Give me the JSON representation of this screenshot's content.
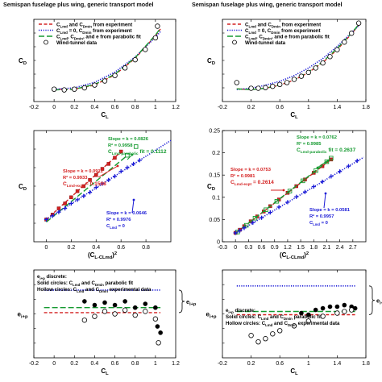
{
  "titles": {
    "left": "Semispan fuselage plus wing, generic transport model",
    "right": "Semispan fuselage plus wing, generic transport model"
  },
  "colors": {
    "red": "#d42020",
    "blue": "#1a1ad6",
    "green": "#159a30",
    "black": "#000000"
  },
  "chart_data": [
    {
      "id": "a",
      "type": "line",
      "xlabel": "C_L",
      "ylabel": "C_D",
      "xlim": [
        -0.2,
        1.2
      ],
      "xticks": [
        "-0.2",
        "0",
        "0.2",
        "0.4",
        "0.6",
        "0.8",
        "1",
        "1.2"
      ],
      "legend": [
        {
          "text": "C_Lmd and C_Dmin from experiment",
          "style": "red-dash"
        },
        {
          "text": "C_Lmd = 0, C_Dmin from experiment",
          "style": "blue-dot"
        },
        {
          "text": "C_Lmd, C_Dmin, and e from parabolic fit",
          "style": "green-longdash"
        },
        {
          "text": "Wind-tunnel data",
          "style": "open-circle"
        }
      ],
      "series": [
        {
          "style": "red-dash",
          "x": [
            0,
            0.2,
            0.4,
            0.6,
            0.8,
            1.0,
            1.05
          ],
          "y": [
            0.018,
            0.018,
            0.024,
            0.039,
            0.063,
            0.096,
            0.106
          ]
        },
        {
          "style": "blue-dot",
          "x": [
            0,
            0.2,
            0.4,
            0.6,
            0.8,
            1.0,
            1.05
          ],
          "y": [
            0.018,
            0.02,
            0.028,
            0.043,
            0.065,
            0.094,
            0.102
          ]
        },
        {
          "style": "green-longdash",
          "x": [
            0,
            0.2,
            0.4,
            0.6,
            0.8,
            1.0,
            1.05
          ],
          "y": [
            0.017,
            0.018,
            0.025,
            0.04,
            0.064,
            0.097,
            0.107
          ]
        },
        {
          "style": "open-circle",
          "x": [
            0.0,
            0.1,
            0.2,
            0.3,
            0.4,
            0.5,
            0.6,
            0.7,
            0.8,
            0.9,
            1.0,
            1.02
          ],
          "y": [
            0.018,
            0.017,
            0.018,
            0.02,
            0.024,
            0.03,
            0.038,
            0.049,
            0.061,
            0.076,
            0.093,
            0.11
          ]
        }
      ]
    },
    {
      "id": "b",
      "type": "line",
      "xlabel": "C_L",
      "ylabel": "C_D",
      "xlim": [
        -0.2,
        1.8
      ],
      "xticks": [
        "-0.2",
        "0.2",
        "0.6",
        "1",
        "1.4",
        "1.8"
      ],
      "legend": [
        {
          "text": "C_Lmd and C_Dmin from experiment",
          "style": "red-dash"
        },
        {
          "text": "C_Lmd = 0, C_Dmin from experiment",
          "style": "blue-dot"
        },
        {
          "text": "C_Lmd, C_Dmin, and e from parabolic fit",
          "style": "green-longdash"
        },
        {
          "text": "Wind-tunnel data",
          "style": "open-circle"
        }
      ],
      "series": [
        {
          "style": "red-dash",
          "x": [
            0,
            0.2,
            0.4,
            0.6,
            0.8,
            1.0,
            1.2,
            1.4,
            1.6,
            1.7
          ],
          "y": [
            0.02,
            0.019,
            0.021,
            0.026,
            0.034,
            0.046,
            0.062,
            0.082,
            0.107,
            0.121
          ]
        },
        {
          "style": "blue-dot",
          "x": [
            0,
            0.2,
            0.4,
            0.6,
            0.8,
            1.0,
            1.2,
            1.4,
            1.6,
            1.7
          ],
          "y": [
            0.019,
            0.021,
            0.026,
            0.032,
            0.041,
            0.053,
            0.068,
            0.087,
            0.109,
            0.12
          ]
        },
        {
          "style": "green-longdash",
          "x": [
            0,
            0.2,
            0.4,
            0.6,
            0.8,
            1.0,
            1.2,
            1.4,
            1.6,
            1.7
          ],
          "y": [
            0.02,
            0.019,
            0.021,
            0.026,
            0.034,
            0.047,
            0.063,
            0.084,
            0.108,
            0.122
          ]
        },
        {
          "style": "open-circle",
          "x": [
            0.0,
            0.2,
            0.3,
            0.4,
            0.5,
            0.6,
            0.7,
            0.8,
            0.9,
            1.0,
            1.1,
            1.2,
            1.3,
            1.4,
            1.5,
            1.6,
            1.7
          ],
          "y": [
            0.03,
            0.021,
            0.021,
            0.022,
            0.024,
            0.027,
            0.03,
            0.035,
            0.04,
            0.046,
            0.053,
            0.061,
            0.071,
            0.082,
            0.094,
            0.108,
            0.124
          ]
        }
      ]
    },
    {
      "id": "c",
      "type": "scatter",
      "xlabel": "(C_L-C_Lmd)^2",
      "ylabel": "C_D",
      "xlim": [
        -0.1,
        1.0
      ],
      "xticks": [
        "0",
        "0.2",
        "0.4",
        "0.6",
        "0.8"
      ],
      "annotations": {
        "green": [
          "Slope = k = 0.0826",
          "R² = 0.9958",
          "C_Lmd-parabolic fit = 0.1112"
        ],
        "red": [
          "Slope = k = 0.0912",
          "R² = 0.9933",
          "C_Lmd-expt = 0.1598"
        ],
        "blue": [
          "Slope = k = 0.0646",
          "R² = 0.9976",
          "C_Lmd = 0"
        ]
      },
      "series": [
        {
          "style": "red-dash",
          "x": [
            0,
            0.58
          ],
          "y": [
            0.018,
            0.071
          ]
        },
        {
          "style": "red-square",
          "x": [
            0,
            0.05,
            0.1,
            0.15,
            0.2,
            0.25,
            0.3,
            0.35,
            0.4,
            0.45,
            0.5,
            0.55,
            0.6
          ],
          "y": [
            0.018,
            0.022,
            0.027,
            0.031,
            0.036,
            0.041,
            0.045,
            0.05,
            0.054,
            0.059,
            0.063,
            0.068,
            0.073
          ]
        },
        {
          "style": "green-longdash",
          "x": [
            0,
            0.64
          ],
          "y": [
            0.016,
            0.069
          ]
        },
        {
          "style": "green-open-square",
          "x": [
            0.65,
            0.72
          ],
          "y": [
            0.07,
            0.077
          ]
        },
        {
          "style": "blue-dot",
          "x": [
            0,
            1.0
          ],
          "y": [
            0.018,
            0.082
          ]
        },
        {
          "style": "blue-cross",
          "x": [
            0,
            0.05,
            0.1,
            0.15,
            0.2,
            0.25,
            0.3,
            0.35,
            0.4,
            0.45,
            0.5,
            0.55,
            0.6,
            0.65,
            0.7,
            0.75
          ],
          "y": [
            0.018,
            0.021,
            0.024,
            0.027,
            0.031,
            0.034,
            0.037,
            0.04,
            0.044,
            0.047,
            0.05,
            0.053,
            0.057,
            0.06,
            0.063,
            0.066
          ]
        }
      ]
    },
    {
      "id": "d",
      "type": "scatter",
      "xlabel": "(C_L-C_Lmd)^2",
      "ylabel": "C_D",
      "xlim": [
        -0.3,
        3.0
      ],
      "ylim": [
        0,
        0.25
      ],
      "xticks": [
        "-0.3",
        "0",
        "0.3",
        "0.6",
        "0.9",
        "1.2",
        "1.5",
        "1.8",
        "2.1",
        "2.4",
        "2.7"
      ],
      "yticks": [
        "0",
        "0.05",
        "0.1",
        "0.15",
        "0.2",
        "0.25"
      ],
      "annotations": {
        "green": [
          "Slope = k = 0.0762",
          "R² = 0.9985",
          "C_Lmd-parabolic fit = 0.2637"
        ],
        "red": [
          "Slope = k = 0.0753",
          "R² = 0.9981",
          "C_Lmd-expt = 0.2614"
        ],
        "blue": [
          "Slope = k = 0.0581",
          "R² = 0.9957",
          "C_Lmd = 0"
        ]
      },
      "series": [
        {
          "style": "red-dash",
          "x": [
            0,
            2.2
          ],
          "y": [
            0.019,
            0.185
          ]
        },
        {
          "style": "red-square",
          "x": [
            0,
            0.1,
            0.2,
            0.35,
            0.5,
            0.65,
            0.8,
            1.0,
            1.2,
            1.4,
            1.6,
            1.8,
            2.0,
            2.2
          ],
          "y": [
            0.02,
            0.027,
            0.035,
            0.046,
            0.057,
            0.068,
            0.08,
            0.095,
            0.11,
            0.125,
            0.14,
            0.155,
            0.17,
            0.185
          ]
        },
        {
          "style": "green-longdash",
          "x": [
            0,
            2.2
          ],
          "y": [
            0.019,
            0.187
          ]
        },
        {
          "style": "green-open-square",
          "x": [
            0.05,
            0.25,
            0.45,
            0.7,
            0.95,
            1.25,
            1.55,
            1.85,
            2.1,
            2.2
          ],
          "y": [
            0.022,
            0.037,
            0.053,
            0.072,
            0.091,
            0.114,
            0.137,
            0.16,
            0.18,
            0.188
          ]
        },
        {
          "style": "blue-dot",
          "x": [
            0,
            2.95
          ],
          "y": [
            0.019,
            0.19
          ]
        },
        {
          "style": "blue-cross",
          "x": [
            0,
            0.1,
            0.2,
            0.4,
            0.6,
            0.8,
            1.0,
            1.2,
            1.4,
            1.6,
            1.8,
            2.0,
            2.2,
            2.4,
            2.6,
            2.8
          ],
          "y": [
            0.02,
            0.025,
            0.031,
            0.043,
            0.054,
            0.066,
            0.078,
            0.089,
            0.101,
            0.112,
            0.124,
            0.135,
            0.147,
            0.158,
            0.17,
            0.182
          ]
        }
      ]
    },
    {
      "id": "e",
      "type": "scatter",
      "xlabel": "C_L",
      "ylabel": "e_i+p",
      "xlim": [
        -0.2,
        1.2
      ],
      "xticks": [
        "-0.2",
        "0",
        "0.2",
        "0.4",
        "0.6",
        "0.8",
        "1",
        "1.2"
      ],
      "notes": [
        "e_i+p discrete:",
        "Solid circles: C_Lmd and C_Dmin parabolic fit",
        "Hollow circles: C_Lmd and C_Dmin experimental data"
      ],
      "bracket_label": "e_i+p",
      "series": [
        {
          "style": "blue-dot",
          "x": [
            -0.1,
            1.05
          ],
          "y": [
            0.64,
            0.64
          ]
        },
        {
          "style": "red-dash",
          "x": [
            -0.1,
            1.05
          ],
          "y": [
            0.46,
            0.46
          ]
        },
        {
          "style": "green-longdash",
          "x": [
            -0.1,
            1.05
          ],
          "y": [
            0.5,
            0.5
          ]
        },
        {
          "style": "solid-circle",
          "x": [
            0.3,
            0.4,
            0.5,
            0.6,
            0.7,
            0.8,
            0.9,
            1.0,
            1.02,
            1.05
          ],
          "y": [
            0.55,
            0.52,
            0.54,
            0.52,
            0.55,
            0.5,
            0.53,
            0.5,
            0.35,
            0.3
          ]
        },
        {
          "style": "open-circle",
          "x": [
            0.3,
            0.4,
            0.5,
            0.6,
            0.7,
            0.8,
            0.9,
            1.0,
            1.03
          ],
          "y": [
            0.4,
            0.43,
            0.47,
            0.45,
            0.48,
            0.44,
            0.47,
            0.41,
            0.22
          ]
        }
      ]
    },
    {
      "id": "f",
      "type": "scatter",
      "xlabel": "C_L",
      "ylabel": "e_i+p",
      "xlim": [
        -0.2,
        1.8
      ],
      "xticks": [
        "-0.2",
        "0.2",
        "0.6",
        "1",
        "1.4",
        "1.8"
      ],
      "notes": [
        "e_i+p discrete:",
        "Solid circles: C_Lmd and C_Dmin parabolic fit",
        "Hollow circles: C_Lmd and C_Dmin experimental data"
      ],
      "bracket_label": "e_i+p",
      "series": [
        {
          "style": "blue-dot",
          "x": [
            0,
            1.65
          ],
          "y": [
            0.75,
            0.75
          ]
        },
        {
          "style": "red-dash",
          "x": [
            0,
            1.65
          ],
          "y": [
            0.57,
            0.57
          ]
        },
        {
          "style": "green-longdash",
          "x": [
            0,
            1.65
          ],
          "y": [
            0.59,
            0.59
          ]
        },
        {
          "style": "solid-circle",
          "x": [
            0.9,
            1.0,
            1.1,
            1.2,
            1.3,
            1.4,
            1.5,
            1.6,
            1.65
          ],
          "y": [
            0.58,
            0.57,
            0.6,
            0.61,
            0.62,
            0.62,
            0.63,
            0.62,
            0.61
          ]
        },
        {
          "style": "open-circle",
          "x": [
            0.2,
            0.3,
            0.4,
            0.5,
            0.6,
            0.8,
            1.0,
            1.2,
            1.4,
            1.5,
            1.6
          ],
          "y": [
            0.44,
            0.4,
            0.42,
            0.45,
            0.47,
            0.5,
            0.53,
            0.56,
            0.58,
            0.59,
            0.6
          ]
        }
      ]
    }
  ]
}
